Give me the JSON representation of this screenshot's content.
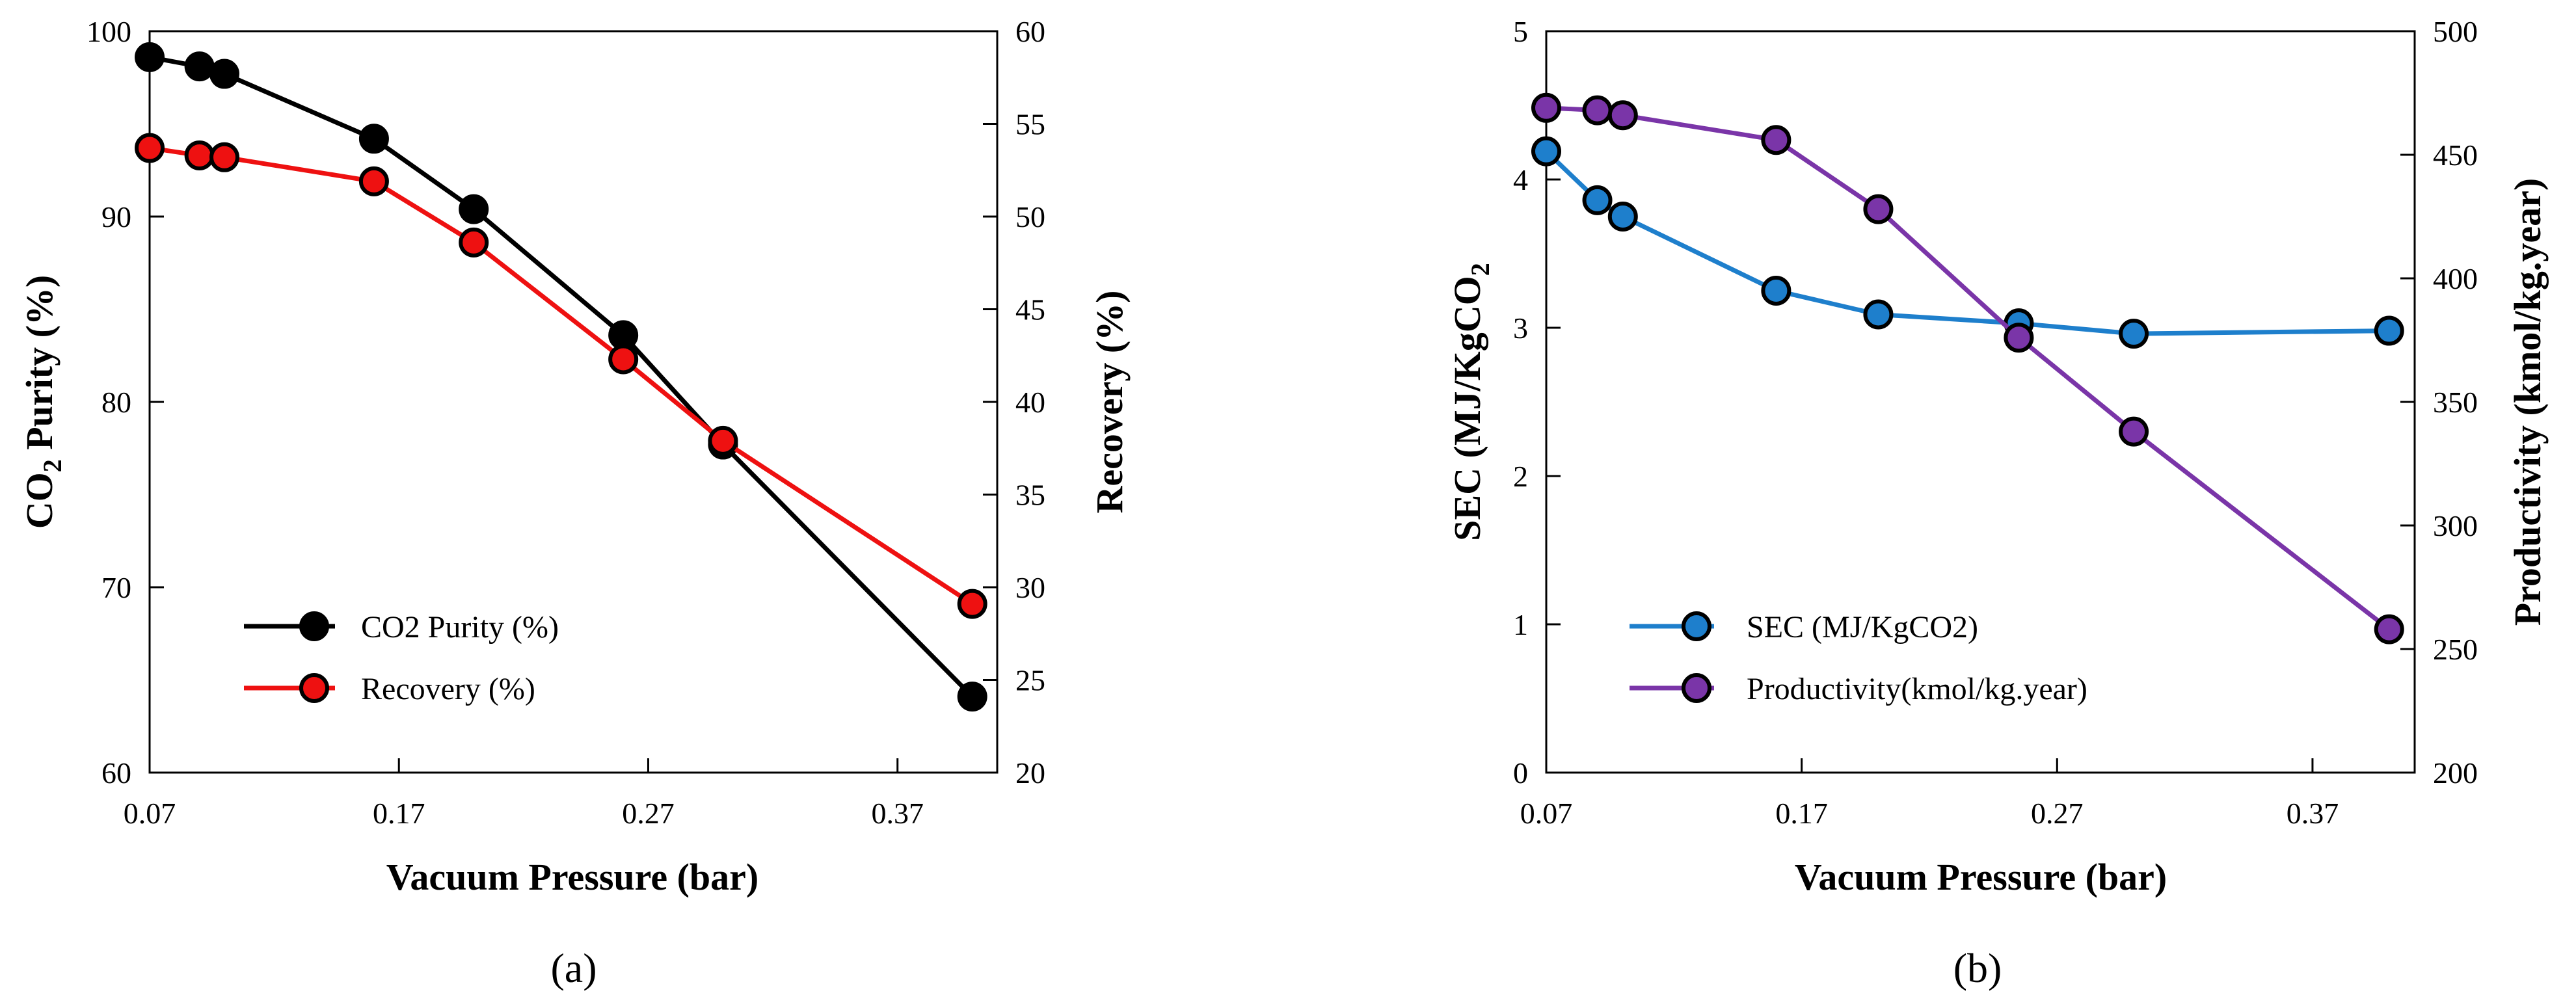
{
  "chart_data": [
    {
      "type": "line",
      "panel_label": "(a)",
      "xlabel": "Vacuum Pressure (bar)",
      "ylabel_main": "CO",
      "ylabel_sub": "2",
      "ylabel_rest": " Purity (%)",
      "y2label": "Recovery (%)",
      "xlim": [
        0.07,
        0.41
      ],
      "xticks": [
        "0.07",
        "0.17",
        "0.27",
        "0.37"
      ],
      "ylim": [
        60,
        100
      ],
      "yticks": [
        "60",
        "70",
        "80",
        "90",
        "100"
      ],
      "y2lim": [
        20,
        60
      ],
      "y2ticks": [
        "20",
        "25",
        "30",
        "35",
        "40",
        "45",
        "50",
        "55",
        "60"
      ],
      "legend_position": "lower-left",
      "series": [
        {
          "name": "CO2 Purity (%)",
          "axis": "left",
          "color": "#000000",
          "x": [
            0.07,
            0.09,
            0.1,
            0.16,
            0.2,
            0.26,
            0.3,
            0.4
          ],
          "values": [
            98.6,
            98.1,
            97.7,
            94.2,
            90.4,
            83.6,
            77.7,
            64.1
          ]
        },
        {
          "name": "Recovery (%)",
          "axis": "right",
          "color": "#ee1111",
          "x": [
            0.07,
            0.09,
            0.1,
            0.16,
            0.2,
            0.26,
            0.3,
            0.4
          ],
          "values": [
            53.7,
            53.3,
            53.2,
            51.9,
            48.6,
            42.3,
            37.9,
            29.1
          ]
        }
      ]
    },
    {
      "type": "line",
      "panel_label": "(b)",
      "xlabel": "Vacuum Pressure (bar)",
      "ylabel_main": "SEC (MJ/KgCO",
      "ylabel_sub": "2",
      "ylabel_rest": "",
      "y2label": "Productivity (kmol/kg.year)",
      "xlim": [
        0.07,
        0.41
      ],
      "xticks": [
        "0.07",
        "0.17",
        "0.27",
        "0.37"
      ],
      "ylim": [
        0,
        5
      ],
      "yticks": [
        "0",
        "1",
        "2",
        "3",
        "4",
        "5"
      ],
      "y2lim": [
        200,
        500
      ],
      "y2ticks": [
        "200",
        "250",
        "300",
        "350",
        "400",
        "450",
        "500"
      ],
      "legend_position": "lower-left",
      "series": [
        {
          "name": "SEC (MJ/KgCO2)",
          "axis": "left",
          "color": "#1e7fcc",
          "x": [
            0.07,
            0.09,
            0.1,
            0.16,
            0.2,
            0.255,
            0.3,
            0.4
          ],
          "values": [
            4.19,
            3.86,
            3.75,
            3.25,
            3.09,
            3.03,
            2.96,
            2.98
          ]
        },
        {
          "name": "Productivity(kmol/kg.year)",
          "axis": "right",
          "color": "#7a35a8",
          "x": [
            0.07,
            0.09,
            0.1,
            0.16,
            0.2,
            0.255,
            0.3,
            0.4
          ],
          "values": [
            469,
            468,
            466,
            456,
            428,
            376,
            338,
            258
          ]
        }
      ]
    }
  ]
}
